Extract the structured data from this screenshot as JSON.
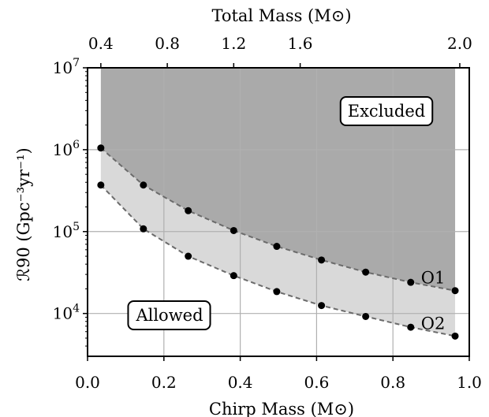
{
  "chart_data": {
    "type": "line",
    "xlabel": "Chirp Mass (M⊙)",
    "x2label": "Total Mass (M⊙)",
    "ylabel": "ℛ90 (Gpc⁻³yr⁻¹)",
    "xlim": [
      0.0,
      1.0
    ],
    "ylim": [
      3000,
      10000000
    ],
    "yscale": "log",
    "grid": true,
    "x_ticks": [
      0.0,
      0.2,
      0.4,
      0.6,
      0.8,
      1.0
    ],
    "x_tick_labels": [
      "0.0",
      "0.2",
      "0.4",
      "0.6",
      "0.8",
      "1.0"
    ],
    "x2_ticks": [
      0.4,
      0.8,
      1.2,
      1.6,
      2.0
    ],
    "x2_tick_labels": [
      "0.4",
      "0.8",
      "1.2",
      "1.6",
      "2.0"
    ],
    "x2_positions_in_chirp": [
      0.0348,
      0.2089,
      0.3829,
      0.557,
      0.9751
    ],
    "y_ticks": [
      10000,
      100000,
      1000000,
      10000000
    ],
    "y_tick_bases": [
      "10",
      "10",
      "10",
      "10"
    ],
    "y_tick_exponents": [
      "4",
      "5",
      "6",
      "7"
    ],
    "series": [
      {
        "name": "O1",
        "x": [
          0.0348,
          0.1463,
          0.2638,
          0.3829,
          0.4957,
          0.6128,
          0.7286,
          0.8466,
          0.9629
        ],
        "y": [
          1050000,
          370000,
          180000,
          103000,
          66000,
          45000,
          32000,
          24000,
          19000
        ]
      },
      {
        "name": "O2",
        "x": [
          0.0348,
          0.1463,
          0.2638,
          0.3829,
          0.4957,
          0.6128,
          0.7286,
          0.8466,
          0.9629
        ],
        "y": [
          370000,
          108000,
          50000,
          29000,
          18500,
          12500,
          9200,
          6800,
          5300
        ]
      }
    ],
    "region_labels": [
      "Excluded",
      "Allowed"
    ],
    "colors": {
      "excluded": "#aaaaaa",
      "between": "#d9d9d9",
      "grid": "#b0b0b0",
      "line": "#6b6b6b",
      "marker": "#000000"
    }
  }
}
